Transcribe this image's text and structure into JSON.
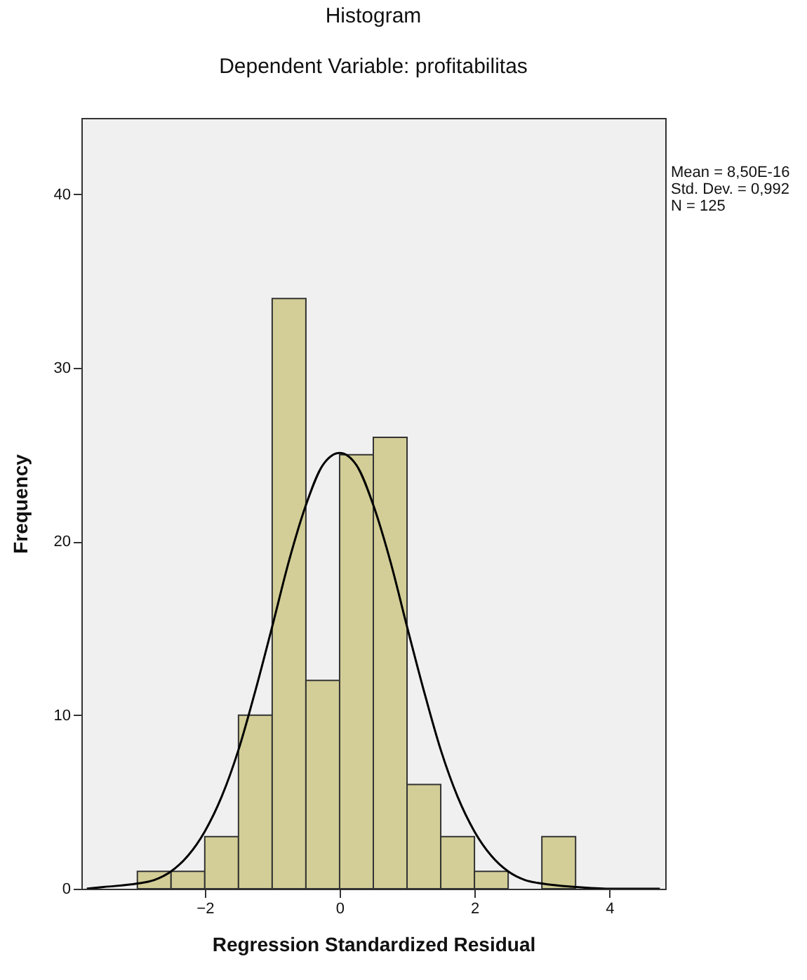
{
  "chart_data": {
    "type": "histogram",
    "title": "Histogram",
    "subtitle": "Dependent Variable: profitabilitas",
    "xlabel": "Regression Standardized Residual",
    "ylabel": "Frequency",
    "bins": [
      -3,
      -2.5,
      -2,
      -1.5,
      -1,
      -0.5,
      0,
      0.5,
      1,
      1.5,
      2,
      2.5,
      3,
      3.5
    ],
    "values": [
      1,
      1,
      3,
      10,
      34,
      12,
      25,
      26,
      6,
      3,
      1,
      0,
      3
    ],
    "color": "#d3ce97",
    "series": [
      {
        "type": "line",
        "color": "#000000",
        "x": [
          -3.75,
          -3.5,
          -3,
          -2.75,
          -2.5,
          -2.25,
          -2,
          -1.75,
          -1.5,
          -1.25,
          -1,
          -0.75,
          -0.5,
          -0.25,
          0,
          0.25,
          0.5,
          0.75,
          1,
          1.25,
          1.5,
          1.75,
          2,
          2.25,
          2.5,
          2.75,
          3,
          3.5,
          4,
          4.75
        ],
        "values": [
          0,
          0.1,
          0.3,
          0.5,
          1,
          1.9,
          3.3,
          5.3,
          8,
          11.4,
          15.1,
          18.9,
          22.1,
          24.4,
          25.1,
          24.4,
          22.1,
          18.9,
          15.1,
          11.4,
          8,
          5.3,
          3.3,
          1.9,
          1,
          0.5,
          0.3,
          0.1,
          0,
          0
        ]
      }
    ],
    "xlim": [
      -3.83,
      4.83
    ],
    "ylim": [
      0,
      44.4
    ],
    "xticks": [
      -2,
      0,
      2,
      4
    ],
    "yticks": [
      0,
      10,
      20,
      30,
      40
    ],
    "grid": false,
    "annotations": [
      "Mean = 8,50E-16",
      "Std. Dev. = 0,992",
      "N = 125"
    ]
  }
}
